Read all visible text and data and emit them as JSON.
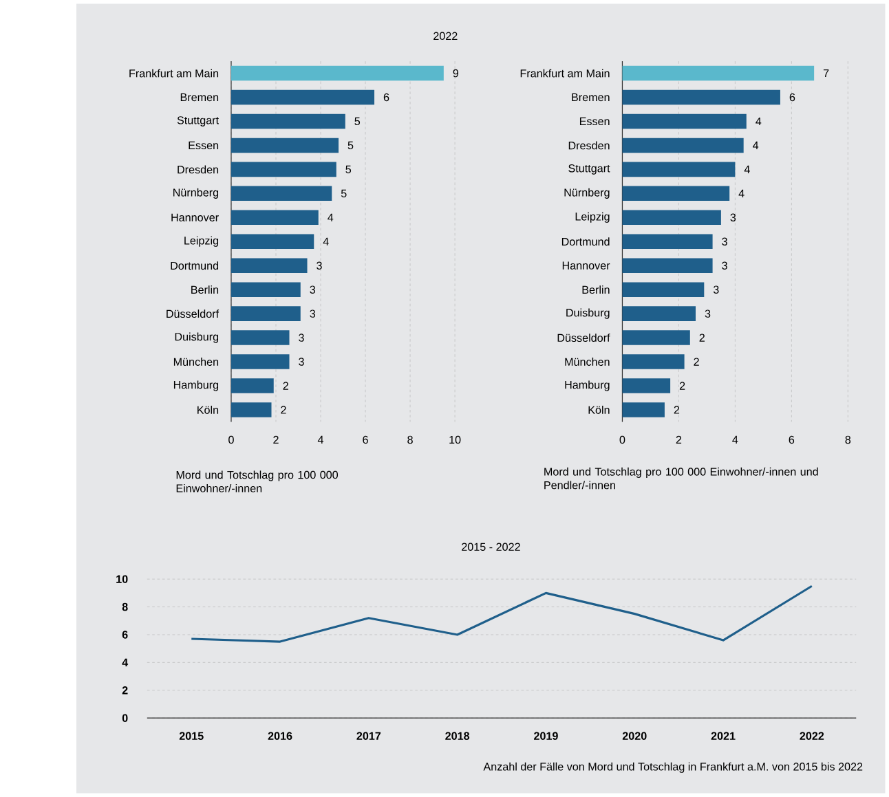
{
  "chart_data": [
    {
      "type": "bar",
      "orientation": "horizontal",
      "title": "2022",
      "xlabel": "Mord und Totschlag pro 100 000 Einwohner/-innen",
      "categories": [
        "Frankfurt am Main",
        "Bremen",
        "Stuttgart",
        "Essen",
        "Dresden",
        "Nürnberg",
        "Hannover",
        "Leipzig",
        "Dortmund",
        "Berlin",
        "Düsseldorf",
        "Duisburg",
        "München",
        "Hamburg",
        "Köln"
      ],
      "values": [
        9.5,
        6.4,
        5.1,
        4.8,
        4.7,
        4.5,
        3.9,
        3.7,
        3.4,
        3.1,
        3.1,
        2.6,
        2.6,
        1.9,
        1.8
      ],
      "value_labels": [
        "9",
        "6",
        "5",
        "5",
        "5",
        "5",
        "4",
        "4",
        "3",
        "3",
        "3",
        "3",
        "3",
        "2",
        "2"
      ],
      "colors": [
        "#5ab8cc",
        "#1f5f8b",
        "#1f5f8b",
        "#1f5f8b",
        "#1f5f8b",
        "#1f5f8b",
        "#1f5f8b",
        "#1f5f8b",
        "#1f5f8b",
        "#1f5f8b",
        "#1f5f8b",
        "#1f5f8b",
        "#1f5f8b",
        "#1f5f8b",
        "#1f5f8b"
      ],
      "xlim": [
        0,
        10
      ],
      "xticks": [
        0,
        2,
        4,
        6,
        8,
        10
      ],
      "grid": "x"
    },
    {
      "type": "bar",
      "orientation": "horizontal",
      "xlabel": "Mord und Totschlag pro 100 000 Einwohner/-innen und Pendler/-innen",
      "categories": [
        "Frankfurt am Main",
        "Bremen",
        "Essen",
        "Dresden",
        "Stuttgart",
        "Nürnberg",
        "Leipzig",
        "Dortmund",
        "Hannover",
        "Berlin",
        "Duisburg",
        "Düsseldorf",
        "München",
        "Hamburg",
        "Köln"
      ],
      "values": [
        6.8,
        5.6,
        4.4,
        4.3,
        4.0,
        3.8,
        3.5,
        3.2,
        3.2,
        2.9,
        2.6,
        2.4,
        2.2,
        1.7,
        1.5
      ],
      "value_labels": [
        "7",
        "6",
        "4",
        "4",
        "4",
        "4",
        "3",
        "3",
        "3",
        "3",
        "3",
        "2",
        "2",
        "2",
        "2"
      ],
      "colors": [
        "#5ab8cc",
        "#1f5f8b",
        "#1f5f8b",
        "#1f5f8b",
        "#1f5f8b",
        "#1f5f8b",
        "#1f5f8b",
        "#1f5f8b",
        "#1f5f8b",
        "#1f5f8b",
        "#1f5f8b",
        "#1f5f8b",
        "#1f5f8b",
        "#1f5f8b",
        "#1f5f8b"
      ],
      "xlim": [
        0,
        8
      ],
      "xticks": [
        0,
        2,
        4,
        6,
        8
      ],
      "grid": "x"
    },
    {
      "type": "line",
      "title": "2015 - 2022",
      "categories": [
        "2015",
        "2016",
        "2017",
        "2018",
        "2019",
        "2020",
        "2021",
        "2022"
      ],
      "values": [
        5.7,
        5.5,
        7.2,
        6.0,
        9.0,
        7.5,
        5.6,
        9.5
      ],
      "color": "#1f5f8b",
      "marker": "none",
      "line_style": "solid",
      "ylim": [
        0,
        10
      ],
      "yticks": [
        0,
        2,
        4,
        6,
        8,
        10
      ],
      "grid": "y",
      "annotations": [
        "Anzahl der Fälle von Mord und Totschlag in Frankfurt a.M. von 2015 bis 2022"
      ]
    }
  ]
}
